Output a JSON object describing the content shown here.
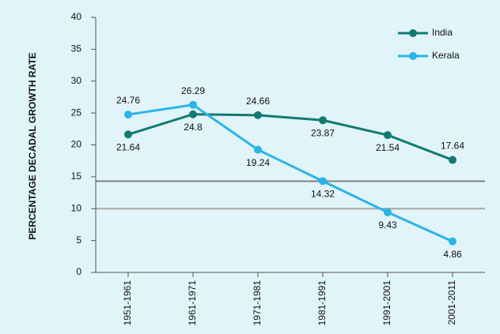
{
  "chart_data": {
    "type": "line",
    "y_label": "PERCENTAGE DECADAL GROWTH RATE",
    "categories": [
      "1951-1961",
      "1961-1971",
      "1971-1981",
      "1981-1991",
      "1991-2001",
      "2001-2011"
    ],
    "series": [
      {
        "name": "India",
        "color": "#137a72",
        "values": [
          21.64,
          24.8,
          24.66,
          23.87,
          21.54,
          17.64
        ]
      },
      {
        "name": "Kerala",
        "color": "#2ab4e8",
        "values": [
          24.76,
          26.29,
          19.24,
          14.32,
          9.43,
          4.86
        ]
      }
    ],
    "ylim": [
      0,
      40
    ],
    "yticks": [
      0,
      5,
      10,
      15,
      20,
      25,
      30,
      35,
      40
    ],
    "reference_lines": [
      {
        "value": 14.3,
        "color": "#7f7f7f"
      },
      {
        "value": 10,
        "color": "#a6a6a6"
      }
    ],
    "legend": "top-right"
  }
}
